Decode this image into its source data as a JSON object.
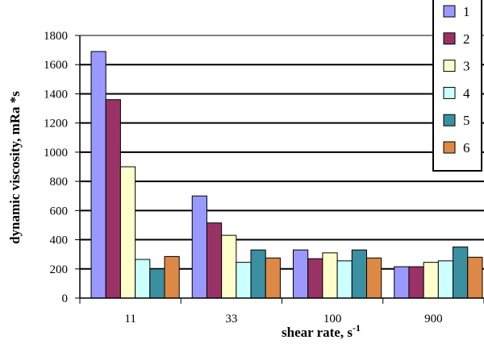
{
  "chart_data": {
    "type": "bar",
    "xlabel": "shear rate, s",
    "xlabel_sup": "-1",
    "ylabel": "dynamic viscosity, mRa *s",
    "ylim": [
      0,
      1800
    ],
    "yticks": [
      0,
      200,
      400,
      600,
      800,
      1000,
      1200,
      1400,
      1600,
      1800
    ],
    "categories": [
      "11",
      "33",
      "100",
      "900"
    ],
    "grid": true,
    "legend_position": "top-right",
    "series": [
      {
        "name": "1",
        "color": "#9999FF",
        "values": [
          1690,
          700,
          330,
          215
        ]
      },
      {
        "name": "2",
        "color": "#993366",
        "values": [
          1360,
          515,
          270,
          215
        ]
      },
      {
        "name": "3",
        "color": "#FFFFCC",
        "values": [
          900,
          430,
          310,
          245
        ]
      },
      {
        "name": "4",
        "color": "#CCFFFF",
        "values": [
          265,
          245,
          255,
          255
        ]
      },
      {
        "name": "5",
        "color": "#3A8FA0",
        "values": [
          200,
          330,
          330,
          350
        ]
      },
      {
        "name": "6",
        "color": "#DD8844",
        "values": [
          285,
          275,
          275,
          280
        ]
      }
    ]
  }
}
